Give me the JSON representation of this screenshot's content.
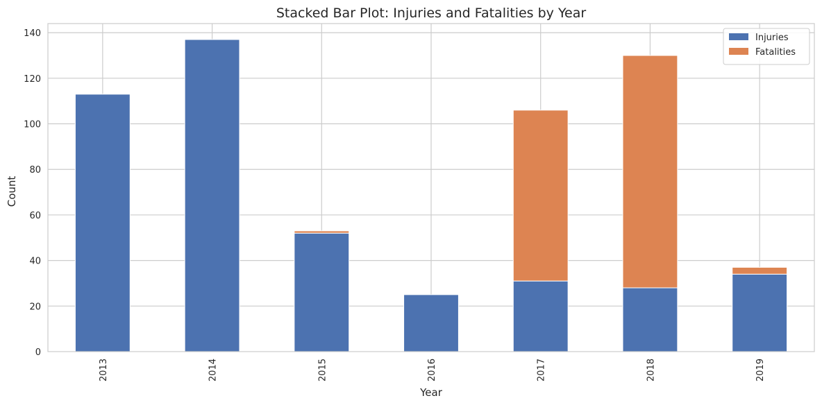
{
  "chart_data": {
    "type": "bar",
    "stacked": true,
    "title": "Stacked Bar Plot: Injuries and Fatalities by Year",
    "xlabel": "Year",
    "ylabel": "Count",
    "categories": [
      "2013",
      "2014",
      "2015",
      "2016",
      "2017",
      "2018",
      "2019"
    ],
    "series": [
      {
        "name": "Injuries",
        "color": "#4c72b0",
        "values": [
          113,
          137,
          52,
          25,
          31,
          28,
          34
        ]
      },
      {
        "name": "Fatalities",
        "color": "#dd8452",
        "values": [
          0,
          0,
          1,
          0,
          75,
          102,
          3
        ]
      }
    ],
    "ylim": [
      0,
      144
    ],
    "yticks": [
      0,
      20,
      40,
      60,
      80,
      100,
      120,
      140
    ],
    "grid": true,
    "legend_position": "top-right",
    "x_tick_rotation": "vertical"
  }
}
